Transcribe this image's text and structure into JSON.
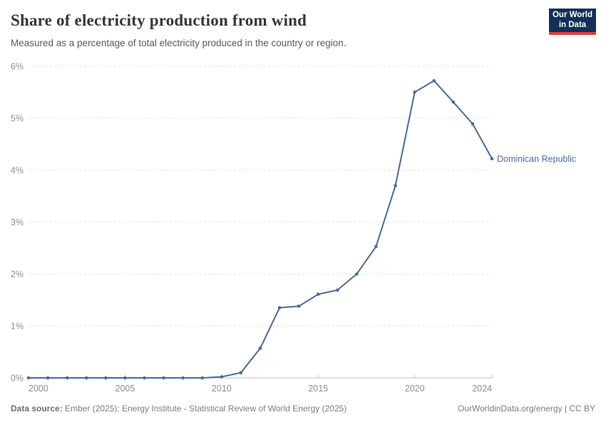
{
  "header": {
    "title": "Share of electricity production from wind",
    "subtitle": "Measured as a percentage of total electricity produced in the country or region."
  },
  "logo": {
    "line1": "Our World",
    "line2": "in Data",
    "bg_color": "#132f57",
    "accent_color": "#dc3d33"
  },
  "footer": {
    "source_label": "Data source:",
    "source_text": " Ember (2025); Energy Institute - Statistical Review of World Energy (2025)",
    "credit": "OurWorldinData.org/energy | CC BY"
  },
  "chart_data": {
    "type": "line",
    "title": "Share of electricity production from wind",
    "xlabel": "",
    "ylabel": "",
    "x": [
      2000,
      2001,
      2002,
      2003,
      2004,
      2005,
      2006,
      2007,
      2008,
      2009,
      2010,
      2011,
      2012,
      2013,
      2014,
      2015,
      2016,
      2017,
      2018,
      2019,
      2020,
      2021,
      2022,
      2023,
      2024
    ],
    "series": [
      {
        "name": "Dominican Republic",
        "color": "#4c6a9c",
        "values": [
          0,
          0,
          0,
          0,
          0,
          0,
          0,
          0,
          0,
          0,
          0.02,
          0.1,
          0.57,
          1.35,
          1.38,
          1.61,
          1.69,
          2.0,
          2.53,
          3.7,
          5.5,
          5.72,
          5.31,
          4.89,
          4.22
        ]
      }
    ],
    "xlim": [
      2000,
      2024
    ],
    "ylim": [
      0,
      6
    ],
    "yticks": [
      {
        "value": 0,
        "label": "0%"
      },
      {
        "value": 1,
        "label": "1%"
      },
      {
        "value": 2,
        "label": "2%"
      },
      {
        "value": 3,
        "label": "3%"
      },
      {
        "value": 4,
        "label": "4%"
      },
      {
        "value": 5,
        "label": "5%"
      },
      {
        "value": 6,
        "label": "6%"
      }
    ],
    "xticks": [
      {
        "value": 2000,
        "label": "2000"
      },
      {
        "value": 2005,
        "label": "2005"
      },
      {
        "value": 2010,
        "label": "2010"
      },
      {
        "value": 2015,
        "label": "2015"
      },
      {
        "value": 2020,
        "label": "2020"
      },
      {
        "value": 2024,
        "label": "2024"
      }
    ],
    "grid": "dashed-horizontal",
    "legend_position": "end-of-line-label",
    "colors": {
      "grid": "#e0e0e0",
      "axis": "#bfbfbf",
      "tick": "#cccccc",
      "tick_label": "#8f8f8f"
    }
  }
}
